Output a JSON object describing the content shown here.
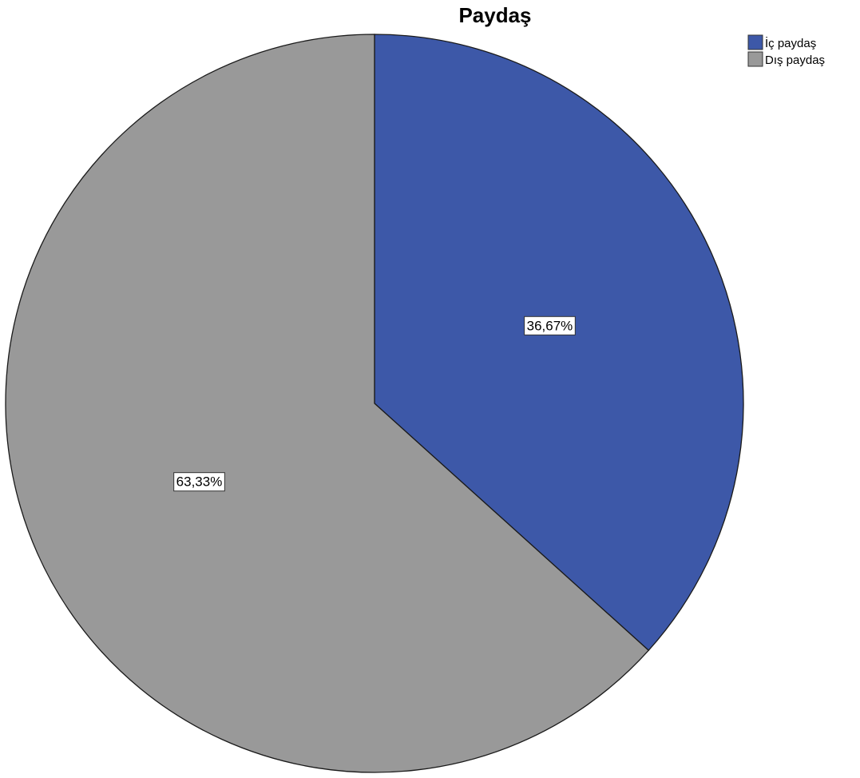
{
  "chart_data": {
    "type": "pie",
    "title": "Paydaş",
    "slices": [
      {
        "label": "İç paydaş",
        "value": 36.67,
        "display": "36,67%",
        "color": "#3d58a8"
      },
      {
        "label": "Dış paydaş",
        "value": 63.33,
        "display": "63,33%",
        "color": "#999999"
      }
    ],
    "start_angle_deg": 0,
    "direction": "clockwise",
    "legend": "top-right"
  }
}
